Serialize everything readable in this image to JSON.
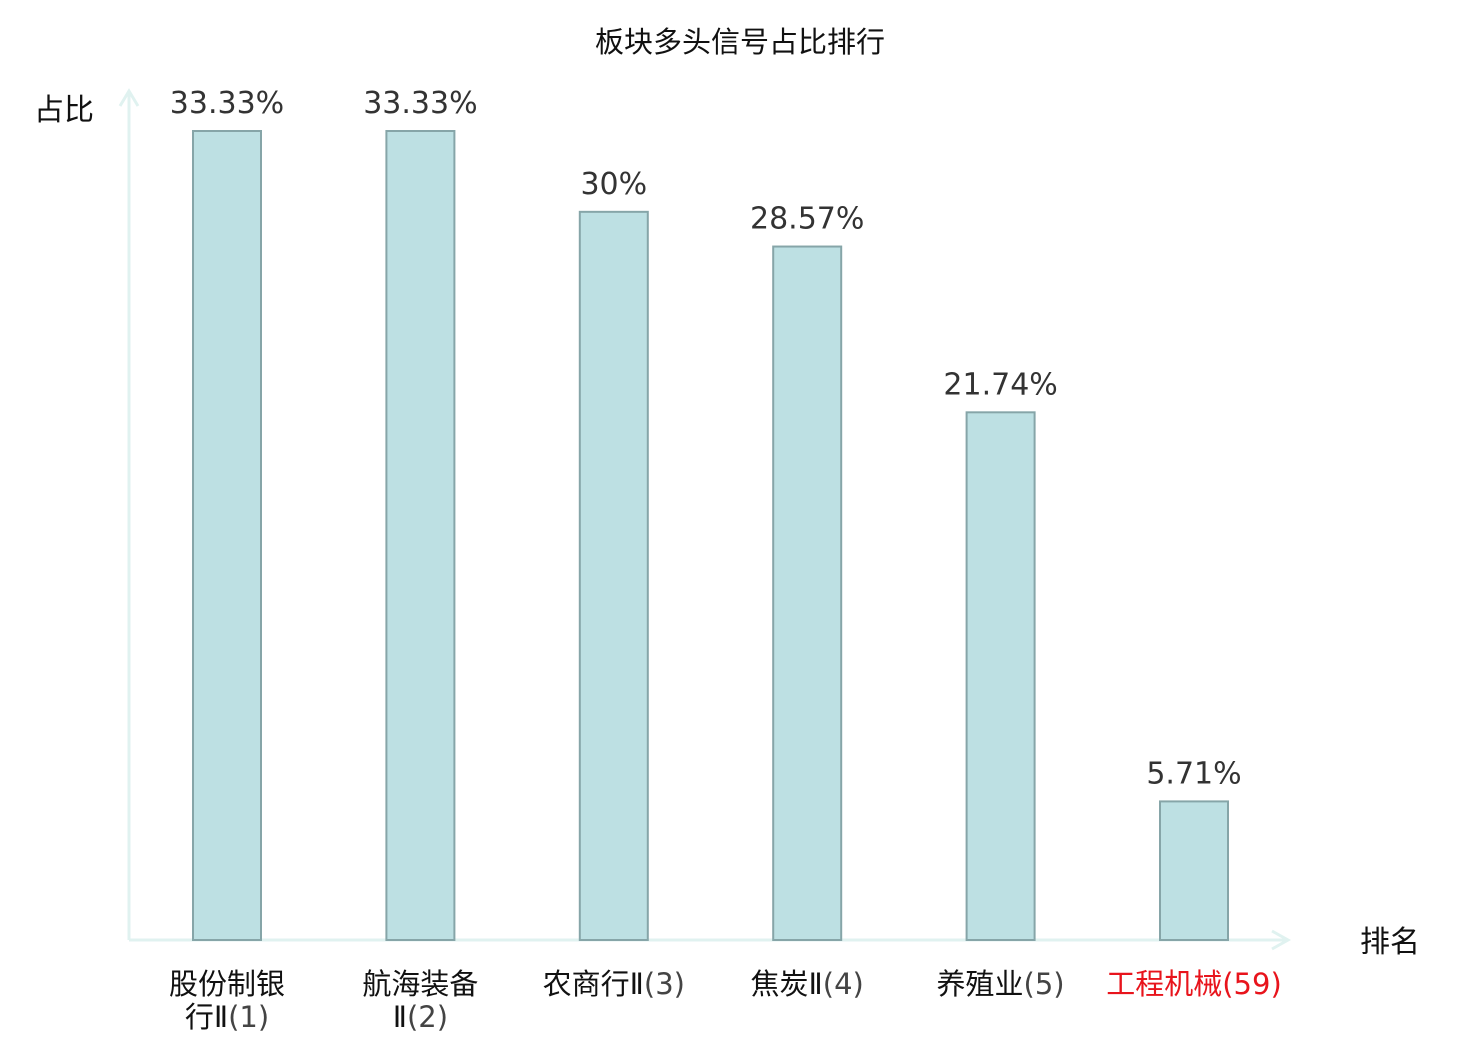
{
  "chart_data": {
    "type": "bar",
    "title": "板块多头信号占比排行",
    "ylabel": "占比",
    "xlabel": "排名",
    "ylim": [
      0,
      33.33
    ],
    "grid": false,
    "categories": [
      {
        "name": "股份制银行Ⅱ",
        "rank": "(1)",
        "lines": [
          {
            "name": "股份制银",
            "rank": ""
          },
          {
            "name": "行Ⅱ",
            "rank": "(1)"
          }
        ],
        "highlight": false
      },
      {
        "name": "航海装备Ⅱ",
        "rank": "(2)",
        "lines": [
          {
            "name": "航海装备",
            "rank": ""
          },
          {
            "name": "Ⅱ",
            "rank": "(2)"
          }
        ],
        "highlight": false
      },
      {
        "name": "农商行Ⅱ",
        "rank": "(3)",
        "lines": [
          {
            "name": "农商行Ⅱ",
            "rank": "(3)"
          }
        ],
        "highlight": false
      },
      {
        "name": "焦炭Ⅱ",
        "rank": "(4)",
        "lines": [
          {
            "name": "焦炭Ⅱ",
            "rank": "(4)"
          }
        ],
        "highlight": false
      },
      {
        "name": "养殖业",
        "rank": "(5)",
        "lines": [
          {
            "name": "养殖业",
            "rank": "(5)"
          }
        ],
        "highlight": false
      },
      {
        "name": "工程机械",
        "rank": "(59)",
        "lines": [
          {
            "name": "工程机械",
            "rank": "(59)"
          }
        ],
        "highlight": true
      }
    ],
    "values": [
      33.33,
      33.33,
      30,
      28.57,
      21.74,
      5.71
    ],
    "value_labels": [
      "33.33%",
      "33.33%",
      "30%",
      "28.57%",
      "21.74%",
      "5.71%"
    ],
    "colors": {
      "bar_fill": "#bde0e3",
      "bar_stroke": "#86a5a8",
      "axis": "#e0f2f0",
      "highlight_text": "#e8141c",
      "name_text": "#111111",
      "rank_text": "#444444"
    }
  }
}
